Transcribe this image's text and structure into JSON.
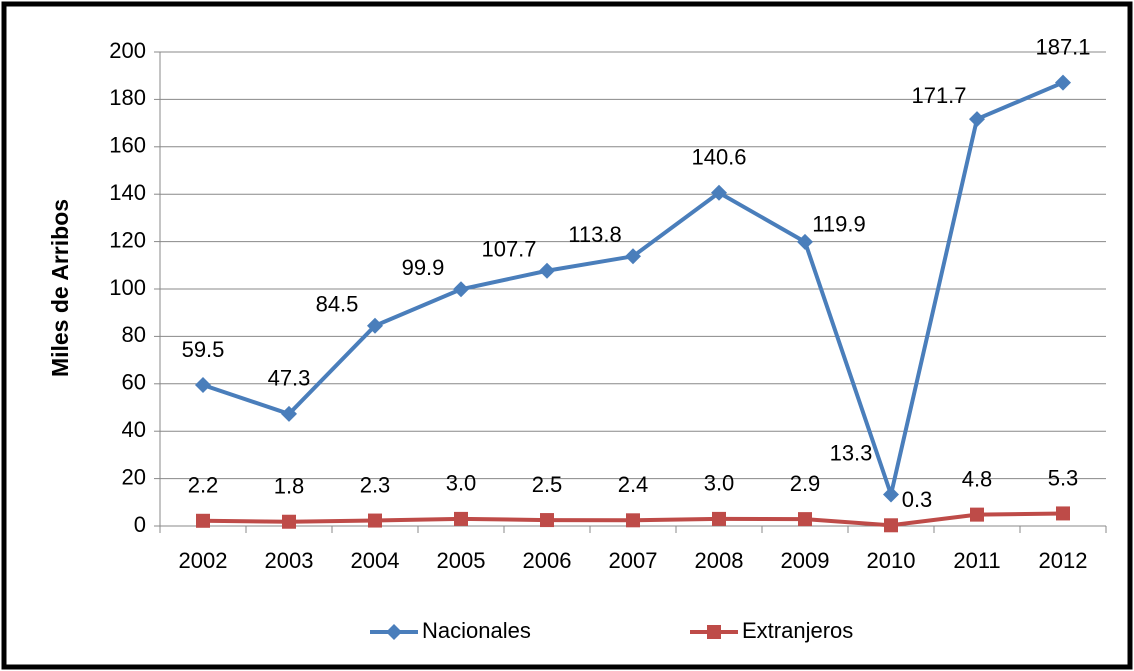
{
  "chart_data": {
    "type": "line",
    "y_label": "Miles de Arribos",
    "categories": [
      "2002",
      "2003",
      "2004",
      "2005",
      "2006",
      "2007",
      "2008",
      "2009",
      "2010",
      "2011",
      "2012"
    ],
    "series": [
      {
        "name": "Nacionales",
        "color": "#4a7ebb",
        "marker": "diamond",
        "values": [
          59.5,
          47.3,
          84.5,
          99.9,
          107.7,
          113.8,
          140.6,
          119.9,
          13.3,
          171.7,
          187.1
        ],
        "value_labels": [
          "59.5",
          "47.3",
          "84.5",
          "99.9",
          "107.7",
          "113.8",
          "140.6",
          "119.9",
          "13.3",
          "171.7",
          "187.1"
        ]
      },
      {
        "name": "Extranjeros",
        "color": "#be4b48",
        "marker": "square",
        "values": [
          2.2,
          1.8,
          2.3,
          3.0,
          2.5,
          2.4,
          3.0,
          2.9,
          0.3,
          4.8,
          5.3
        ],
        "value_labels": [
          "2.2",
          "1.8",
          "2.3",
          "3.0",
          "2.5",
          "2.4",
          "3.0",
          "2.9",
          "0.3",
          "4.8",
          "5.3"
        ]
      }
    ],
    "ylim": [
      0,
      200
    ],
    "yticks": [
      0,
      20,
      40,
      60,
      80,
      100,
      120,
      140,
      160,
      180,
      200
    ],
    "grid": true,
    "legend": "bottom"
  }
}
